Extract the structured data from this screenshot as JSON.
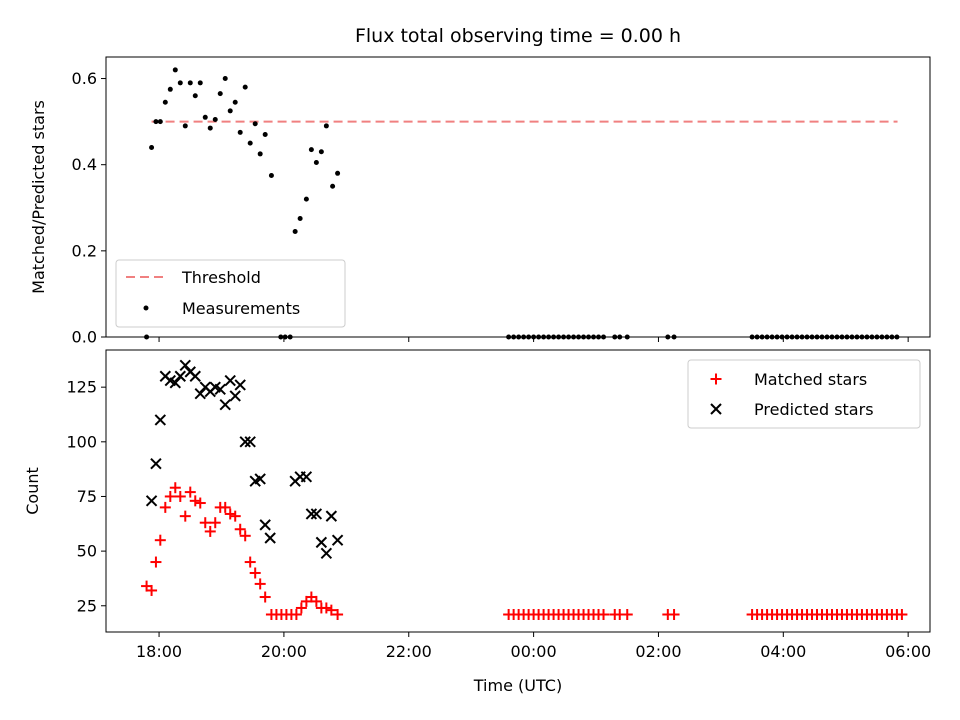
{
  "chart_data": [
    {
      "type": "scatter",
      "title": "Flux total observing time = 0.00 h",
      "xlabel": "",
      "ylabel": "Matched/Predicted stars",
      "xlim_hours": [
        17.15,
        30.35
      ],
      "ylim": [
        0,
        0.65
      ],
      "yticks": [
        0.0,
        0.2,
        0.4,
        0.6
      ],
      "ytick_labels": [
        "0.0",
        "0.2",
        "0.4",
        "0.6"
      ],
      "legend_position": "lower-left",
      "legend": [
        {
          "label": "Threshold",
          "kind": "dashed-line",
          "color": "#f08080"
        },
        {
          "label": "Measurements",
          "kind": "dot",
          "color": "#000000"
        }
      ],
      "threshold": {
        "y": 0.5,
        "x_start": 17.88,
        "x_end": 29.83,
        "color": "#f08080"
      },
      "series": [
        {
          "kind": "dot",
          "color": "#000000",
          "points": [
            [
              17.8,
              0.0
            ],
            [
              17.88,
              0.44
            ],
            [
              17.95,
              0.5
            ],
            [
              18.02,
              0.5
            ],
            [
              18.1,
              0.545
            ],
            [
              18.18,
              0.575
            ],
            [
              18.26,
              0.62
            ],
            [
              18.34,
              0.59
            ],
            [
              18.42,
              0.49
            ],
            [
              18.5,
              0.59
            ],
            [
              18.58,
              0.56
            ],
            [
              18.66,
              0.59
            ],
            [
              18.74,
              0.51
            ],
            [
              18.82,
              0.485
            ],
            [
              18.9,
              0.505
            ],
            [
              18.98,
              0.565
            ],
            [
              19.06,
              0.6
            ],
            [
              19.14,
              0.525
            ],
            [
              19.22,
              0.545
            ],
            [
              19.3,
              0.475
            ],
            [
              19.38,
              0.58
            ],
            [
              19.46,
              0.45
            ],
            [
              19.54,
              0.495
            ],
            [
              19.62,
              0.425
            ],
            [
              19.7,
              0.47
            ],
            [
              19.8,
              0.375
            ],
            [
              19.95,
              0.0
            ],
            [
              20.02,
              0.0
            ],
            [
              20.1,
              0.0
            ],
            [
              20.18,
              0.245
            ],
            [
              20.26,
              0.275
            ],
            [
              20.36,
              0.32
            ],
            [
              20.44,
              0.435
            ],
            [
              20.52,
              0.405
            ],
            [
              20.6,
              0.43
            ],
            [
              20.68,
              0.49
            ],
            [
              20.78,
              0.35
            ],
            [
              20.86,
              0.38
            ],
            [
              23.6,
              0.0
            ],
            [
              23.68,
              0.0
            ],
            [
              23.76,
              0.0
            ],
            [
              23.84,
              0.0
            ],
            [
              23.92,
              0.0
            ],
            [
              24.0,
              0.0
            ],
            [
              24.08,
              0.0
            ],
            [
              24.16,
              0.0
            ],
            [
              24.24,
              0.0
            ],
            [
              24.32,
              0.0
            ],
            [
              24.4,
              0.0
            ],
            [
              24.48,
              0.0
            ],
            [
              24.56,
              0.0
            ],
            [
              24.64,
              0.0
            ],
            [
              24.72,
              0.0
            ],
            [
              24.8,
              0.0
            ],
            [
              24.88,
              0.0
            ],
            [
              24.96,
              0.0
            ],
            [
              25.04,
              0.0
            ],
            [
              25.12,
              0.0
            ],
            [
              25.3,
              0.0
            ],
            [
              25.38,
              0.0
            ],
            [
              25.5,
              0.0
            ],
            [
              26.15,
              0.0
            ],
            [
              26.25,
              0.0
            ],
            [
              27.5,
              0.0
            ],
            [
              27.58,
              0.0
            ],
            [
              27.66,
              0.0
            ],
            [
              27.74,
              0.0
            ],
            [
              27.82,
              0.0
            ],
            [
              27.9,
              0.0
            ],
            [
              27.98,
              0.0
            ],
            [
              28.06,
              0.0
            ],
            [
              28.14,
              0.0
            ],
            [
              28.22,
              0.0
            ],
            [
              28.3,
              0.0
            ],
            [
              28.38,
              0.0
            ],
            [
              28.46,
              0.0
            ],
            [
              28.54,
              0.0
            ],
            [
              28.62,
              0.0
            ],
            [
              28.7,
              0.0
            ],
            [
              28.78,
              0.0
            ],
            [
              28.86,
              0.0
            ],
            [
              28.94,
              0.0
            ],
            [
              29.02,
              0.0
            ],
            [
              29.1,
              0.0
            ],
            [
              29.18,
              0.0
            ],
            [
              29.26,
              0.0
            ],
            [
              29.34,
              0.0
            ],
            [
              29.42,
              0.0
            ],
            [
              29.5,
              0.0
            ],
            [
              29.58,
              0.0
            ],
            [
              29.66,
              0.0
            ],
            [
              29.74,
              0.0
            ],
            [
              29.82,
              0.0
            ]
          ]
        }
      ]
    },
    {
      "type": "scatter",
      "title": "",
      "xlabel": "Time (UTC)",
      "ylabel": "Count",
      "xlim_hours": [
        17.15,
        30.35
      ],
      "xticks_hours": [
        18,
        20,
        22,
        24,
        26,
        28,
        30
      ],
      "xtick_labels": [
        "18:00",
        "20:00",
        "22:00",
        "00:00",
        "02:00",
        "04:00",
        "06:00"
      ],
      "ylim": [
        13,
        142
      ],
      "yticks": [
        25,
        50,
        75,
        100,
        125
      ],
      "ytick_labels": [
        "25",
        "50",
        "75",
        "100",
        "125"
      ],
      "legend_position": "upper-right",
      "legend": [
        {
          "label": "Matched stars",
          "kind": "plus",
          "color": "#ff0000"
        },
        {
          "label": "Predicted stars",
          "kind": "x",
          "color": "#000000"
        }
      ],
      "series": [
        {
          "name": "Matched stars",
          "kind": "plus",
          "color": "#ff0000",
          "points": [
            [
              17.8,
              34
            ],
            [
              17.88,
              32
            ],
            [
              17.95,
              45
            ],
            [
              18.02,
              55
            ],
            [
              18.1,
              70
            ],
            [
              18.18,
              75
            ],
            [
              18.26,
              79
            ],
            [
              18.34,
              75
            ],
            [
              18.42,
              66
            ],
            [
              18.5,
              77
            ],
            [
              18.58,
              73
            ],
            [
              18.66,
              72
            ],
            [
              18.74,
              63
            ],
            [
              18.82,
              59
            ],
            [
              18.9,
              63
            ],
            [
              18.98,
              70
            ],
            [
              19.06,
              70
            ],
            [
              19.14,
              67
            ],
            [
              19.22,
              66
            ],
            [
              19.3,
              60
            ],
            [
              19.38,
              57
            ],
            [
              19.46,
              45
            ],
            [
              19.54,
              40
            ],
            [
              19.62,
              35
            ],
            [
              19.7,
              29
            ],
            [
              19.8,
              21
            ],
            [
              19.88,
              21
            ],
            [
              19.96,
              21
            ],
            [
              20.04,
              21
            ],
            [
              20.12,
              21
            ],
            [
              20.2,
              21
            ],
            [
              20.28,
              24
            ],
            [
              20.36,
              27
            ],
            [
              20.44,
              29
            ],
            [
              20.52,
              27
            ],
            [
              20.6,
              24
            ],
            [
              20.68,
              24
            ],
            [
              20.76,
              23
            ],
            [
              20.86,
              21
            ],
            [
              23.6,
              21
            ],
            [
              23.68,
              21
            ],
            [
              23.76,
              21
            ],
            [
              23.84,
              21
            ],
            [
              23.92,
              21
            ],
            [
              24.0,
              21
            ],
            [
              24.08,
              21
            ],
            [
              24.16,
              21
            ],
            [
              24.24,
              21
            ],
            [
              24.32,
              21
            ],
            [
              24.4,
              21
            ],
            [
              24.48,
              21
            ],
            [
              24.56,
              21
            ],
            [
              24.64,
              21
            ],
            [
              24.72,
              21
            ],
            [
              24.8,
              21
            ],
            [
              24.88,
              21
            ],
            [
              24.96,
              21
            ],
            [
              25.04,
              21
            ],
            [
              25.12,
              21
            ],
            [
              25.3,
              21
            ],
            [
              25.38,
              21
            ],
            [
              25.5,
              21
            ],
            [
              26.15,
              21
            ],
            [
              26.25,
              21
            ],
            [
              27.5,
              21
            ],
            [
              27.58,
              21
            ],
            [
              27.66,
              21
            ],
            [
              27.74,
              21
            ],
            [
              27.82,
              21
            ],
            [
              27.9,
              21
            ],
            [
              27.98,
              21
            ],
            [
              28.06,
              21
            ],
            [
              28.14,
              21
            ],
            [
              28.22,
              21
            ],
            [
              28.3,
              21
            ],
            [
              28.38,
              21
            ],
            [
              28.46,
              21
            ],
            [
              28.54,
              21
            ],
            [
              28.62,
              21
            ],
            [
              28.7,
              21
            ],
            [
              28.78,
              21
            ],
            [
              28.86,
              21
            ],
            [
              28.94,
              21
            ],
            [
              29.02,
              21
            ],
            [
              29.1,
              21
            ],
            [
              29.18,
              21
            ],
            [
              29.26,
              21
            ],
            [
              29.34,
              21
            ],
            [
              29.42,
              21
            ],
            [
              29.5,
              21
            ],
            [
              29.58,
              21
            ],
            [
              29.66,
              21
            ],
            [
              29.74,
              21
            ],
            [
              29.82,
              21
            ],
            [
              29.9,
              21
            ]
          ]
        },
        {
          "name": "Predicted stars",
          "kind": "x",
          "color": "#000000",
          "points": [
            [
              17.88,
              73
            ],
            [
              17.95,
              90
            ],
            [
              18.02,
              110
            ],
            [
              18.1,
              130
            ],
            [
              18.18,
              128
            ],
            [
              18.26,
              127
            ],
            [
              18.34,
              130
            ],
            [
              18.42,
              135
            ],
            [
              18.5,
              132
            ],
            [
              18.58,
              130
            ],
            [
              18.66,
              122
            ],
            [
              18.74,
              125
            ],
            [
              18.82,
              123
            ],
            [
              18.9,
              125
            ],
            [
              18.98,
              124
            ],
            [
              19.06,
              117
            ],
            [
              19.14,
              128
            ],
            [
              19.22,
              121
            ],
            [
              19.3,
              126
            ],
            [
              19.38,
              100
            ],
            [
              19.46,
              100
            ],
            [
              19.54,
              82
            ],
            [
              19.62,
              83
            ],
            [
              19.7,
              62
            ],
            [
              19.78,
              56
            ],
            [
              20.18,
              82
            ],
            [
              20.26,
              84
            ],
            [
              20.36,
              84
            ],
            [
              20.44,
              67
            ],
            [
              20.52,
              67
            ],
            [
              20.6,
              54
            ],
            [
              20.68,
              49
            ],
            [
              20.76,
              66
            ],
            [
              20.86,
              55
            ]
          ]
        }
      ]
    }
  ]
}
